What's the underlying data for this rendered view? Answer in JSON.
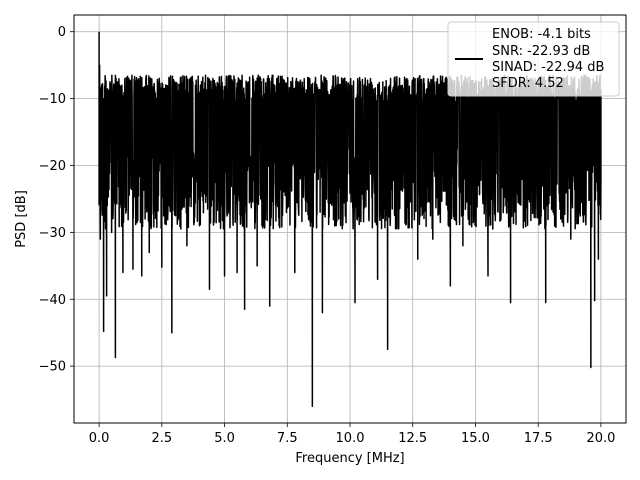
{
  "chart_data": {
    "type": "line",
    "title": "",
    "xlabel": "Frequency [MHz]",
    "ylabel": "PSD [dB]",
    "xlim": [
      -1.0,
      21.0
    ],
    "ylim": [
      -58.5,
      2.5
    ],
    "grid": true,
    "legend_placement": "top-right",
    "x_ticks": [
      0.0,
      2.5,
      5.0,
      7.5,
      10.0,
      12.5,
      15.0,
      17.5,
      20.0
    ],
    "x_tick_labels": [
      "0.0",
      "2.5",
      "5.0",
      "7.5",
      "10.0",
      "12.5",
      "15.0",
      "17.5",
      "20.0"
    ],
    "y_ticks": [
      0,
      -10,
      -20,
      -30,
      -40,
      -50
    ],
    "y_tick_labels": [
      "0",
      "−10",
      "−20",
      "−30",
      "−40",
      "−50"
    ],
    "series": [
      {
        "legend_lines": [
          "ENOB: -4.1 bits",
          "SNR: -22.93 dB",
          "SINAD: -22.94 dB",
          "SFDR: 4.52"
        ],
        "color": "#000000",
        "x_range": [
          0.0,
          20.0
        ],
        "band_upper_db": -6.5,
        "band_lower_db": -29.5,
        "points": [
          [
            0.0,
            0.0
          ],
          [
            0.02,
            -5.0
          ],
          [
            0.05,
            -31.0
          ],
          [
            0.1,
            -8.0
          ],
          [
            0.18,
            -44.8
          ],
          [
            0.25,
            -12.0
          ],
          [
            0.3,
            -39.5
          ],
          [
            0.38,
            -10.0
          ],
          [
            0.5,
            -30.0
          ],
          [
            0.65,
            -48.7
          ],
          [
            0.75,
            -13.0
          ],
          [
            0.95,
            -36.0
          ],
          [
            1.2,
            -12.0
          ],
          [
            1.35,
            -35.5
          ],
          [
            1.7,
            -36.5
          ],
          [
            1.8,
            -11.0
          ],
          [
            2.0,
            -33.0
          ],
          [
            2.2,
            -8.0
          ],
          [
            2.5,
            -35.2
          ],
          [
            2.7,
            -27.0
          ],
          [
            2.9,
            -45.0
          ],
          [
            3.1,
            -11.0
          ],
          [
            3.5,
            -32.0
          ],
          [
            3.7,
            -10.0
          ],
          [
            4.0,
            -29.0
          ],
          [
            4.4,
            -38.5
          ],
          [
            4.7,
            -9.0
          ],
          [
            5.0,
            -36.5
          ],
          [
            5.5,
            -36.0
          ],
          [
            5.8,
            -41.5
          ],
          [
            6.0,
            -9.0
          ],
          [
            6.3,
            -35.0
          ],
          [
            6.8,
            -41.0
          ],
          [
            7.2,
            -8.0
          ],
          [
            7.8,
            -36.0
          ],
          [
            8.2,
            -20.0
          ],
          [
            8.5,
            -56.0
          ],
          [
            8.7,
            -10.0
          ],
          [
            8.9,
            -42.0
          ],
          [
            9.5,
            -24.0
          ],
          [
            10.2,
            -40.5
          ],
          [
            10.5,
            -8.0
          ],
          [
            11.1,
            -37.0
          ],
          [
            11.5,
            -47.5
          ],
          [
            11.8,
            -9.0
          ],
          [
            12.7,
            -34.0
          ],
          [
            13.3,
            -31.0
          ],
          [
            13.8,
            -8.0
          ],
          [
            14.0,
            -38.0
          ],
          [
            14.5,
            -32.0
          ],
          [
            14.9,
            -8.0
          ],
          [
            15.5,
            -36.5
          ],
          [
            16.4,
            -40.5
          ],
          [
            16.9,
            -9.0
          ],
          [
            17.8,
            -40.5
          ],
          [
            18.4,
            -28.0
          ],
          [
            18.8,
            -31.0
          ],
          [
            19.3,
            -8.0
          ],
          [
            19.6,
            -50.2
          ],
          [
            19.75,
            -40.2
          ],
          [
            19.9,
            -34.0
          ],
          [
            20.0,
            -22.0
          ]
        ]
      }
    ]
  }
}
